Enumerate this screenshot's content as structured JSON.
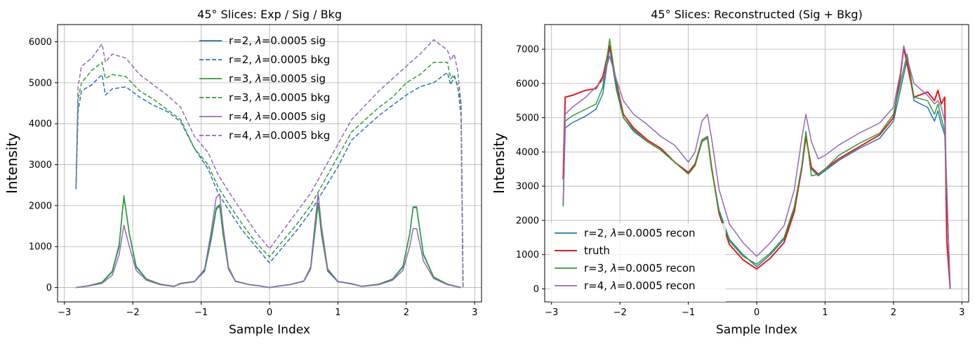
{
  "chart_data": [
    {
      "type": "line",
      "title": "45° Slices: Exp / Sig / Bkg",
      "xlabel": "Sample Index",
      "ylabel": "Intensity",
      "xlim": [
        -3.1,
        3.1
      ],
      "ylim": [
        -350,
        6420
      ],
      "xticks": [
        -3,
        -2,
        -1,
        0,
        1,
        2,
        3
      ],
      "xtick_labels": [
        "−3",
        "−2",
        "−1",
        "0",
        "1",
        "2",
        "3"
      ],
      "yticks": [
        0,
        1000,
        2000,
        3000,
        4000,
        5000,
        6000
      ],
      "ytick_labels": [
        "0",
        "1000",
        "2000",
        "3000",
        "4000",
        "5000",
        "6000"
      ],
      "grid": true,
      "legend_position": "upper-center",
      "series": [
        {
          "name": "r=2, λ=0.0005 sig",
          "label_prefix": "r=2, ",
          "label_value": "=0.0005 sig",
          "color": "#1f77b4",
          "dash": "solid",
          "profile": "sig",
          "peak_scale": 1.0,
          "x": [
            -2.83,
            -2.65,
            -2.45,
            -2.3,
            -2.2,
            -2.13,
            -2.05,
            -1.95,
            -1.8,
            -1.6,
            -1.4,
            -1.3,
            -1.1,
            -0.95,
            -0.85,
            -0.78,
            -0.73,
            -0.68,
            -0.6,
            -0.5,
            -0.3,
            -0.15,
            0,
            0.15,
            0.3,
            0.5,
            0.6,
            0.66,
            0.71,
            0.76,
            0.85,
            1.0,
            1.2,
            1.35,
            1.6,
            1.8,
            1.95,
            2.05,
            2.1,
            2.15,
            2.25,
            2.4,
            2.6,
            2.75,
            2.8
          ],
          "y": [
            0,
            40,
            120,
            380,
            1000,
            2220,
            1300,
            500,
            200,
            80,
            30,
            100,
            140,
            400,
            1200,
            1900,
            2000,
            1300,
            450,
            150,
            70,
            40,
            0,
            40,
            70,
            150,
            450,
            1300,
            2050,
            1300,
            400,
            140,
            90,
            30,
            80,
            200,
            500,
            1300,
            1950,
            1950,
            800,
            250,
            80,
            20,
            0
          ]
        },
        {
          "name": "r=2, λ=0.0005 bkg",
          "label_prefix": "r=2, ",
          "label_value": "=0.0005 bkg",
          "color": "#1f77b4",
          "dash": "dashed",
          "x": [
            -2.83,
            -2.8,
            -2.75,
            -2.6,
            -2.45,
            -2.4,
            -2.3,
            -2.1,
            -1.9,
            -1.7,
            -1.5,
            -1.3,
            -1.1,
            -0.9,
            -0.75,
            -0.6,
            -0.4,
            -0.2,
            0,
            0.2,
            0.4,
            0.6,
            0.8,
            1.0,
            1.2,
            1.4,
            1.6,
            1.8,
            2.0,
            2.2,
            2.4,
            2.6,
            2.65,
            2.7,
            2.75,
            2.8,
            2.83
          ],
          "y": [
            2400,
            4300,
            4800,
            4950,
            5200,
            4700,
            4850,
            4900,
            4650,
            4450,
            4300,
            4050,
            3400,
            2900,
            2300,
            1900,
            1400,
            1000,
            600,
            1000,
            1400,
            1850,
            2400,
            2950,
            3600,
            3900,
            4200,
            4450,
            4700,
            4900,
            5000,
            5250,
            4950,
            5150,
            4950,
            4200,
            0
          ]
        },
        {
          "name": "r=3, λ=0.0005 sig",
          "label_prefix": "r=3, ",
          "label_value": "=0.0005 sig",
          "color": "#2ca02c",
          "dash": "solid",
          "x": [
            -2.83,
            -2.65,
            -2.45,
            -2.3,
            -2.2,
            -2.13,
            -2.05,
            -1.95,
            -1.8,
            -1.6,
            -1.4,
            -1.3,
            -1.1,
            -0.95,
            -0.85,
            -0.78,
            -0.73,
            -0.68,
            -0.6,
            -0.5,
            -0.3,
            -0.15,
            0,
            0.15,
            0.3,
            0.5,
            0.6,
            0.66,
            0.71,
            0.76,
            0.85,
            1.0,
            1.2,
            1.35,
            1.6,
            1.8,
            1.95,
            2.05,
            2.1,
            2.15,
            2.25,
            2.4,
            2.6,
            2.75,
            2.8
          ],
          "y": [
            0,
            45,
            130,
            400,
            1050,
            2240,
            1320,
            520,
            210,
            85,
            30,
            105,
            150,
            420,
            1250,
            1950,
            2020,
            1320,
            460,
            155,
            72,
            42,
            0,
            42,
            72,
            155,
            460,
            1320,
            2060,
            1320,
            420,
            150,
            95,
            30,
            85,
            210,
            520,
            1320,
            1970,
            1970,
            820,
            260,
            85,
            20,
            0
          ]
        },
        {
          "name": "r=3, λ=0.0005 bkg",
          "label_prefix": "r=3, ",
          "label_value": "=0.0005 bkg",
          "color": "#2ca02c",
          "dash": "dashed",
          "x": [
            -2.83,
            -2.8,
            -2.75,
            -2.6,
            -2.45,
            -2.4,
            -2.3,
            -2.1,
            -1.9,
            -1.7,
            -1.5,
            -1.3,
            -1.1,
            -0.9,
            -0.75,
            -0.6,
            -0.4,
            -0.2,
            0,
            0.2,
            0.4,
            0.6,
            0.8,
            1.0,
            1.2,
            1.4,
            1.6,
            1.8,
            2.0,
            2.2,
            2.4,
            2.6,
            2.65,
            2.7,
            2.75,
            2.8,
            2.83
          ],
          "y": [
            2450,
            4600,
            5000,
            5300,
            5500,
            5100,
            5200,
            5150,
            4800,
            4600,
            4350,
            4100,
            3400,
            3000,
            2450,
            2050,
            1550,
            1100,
            750,
            1150,
            1550,
            2000,
            2600,
            3200,
            3800,
            4100,
            4400,
            4650,
            5000,
            5200,
            5500,
            5500,
            5100,
            5200,
            4900,
            4500,
            0
          ]
        },
        {
          "name": "r=4, λ=0.0005 sig",
          "label_prefix": "r=4, ",
          "label_value": "=0.0005 sig",
          "color": "#9467bd",
          "dash": "solid",
          "x": [
            -2.83,
            -2.65,
            -2.45,
            -2.3,
            -2.2,
            -2.13,
            -2.05,
            -1.95,
            -1.8,
            -1.6,
            -1.4,
            -1.3,
            -1.1,
            -0.95,
            -0.85,
            -0.78,
            -0.73,
            -0.68,
            -0.6,
            -0.5,
            -0.3,
            -0.15,
            0,
            0.15,
            0.3,
            0.5,
            0.6,
            0.66,
            0.71,
            0.76,
            0.85,
            1.0,
            1.2,
            1.35,
            1.6,
            1.8,
            1.95,
            2.05,
            2.1,
            2.15,
            2.25,
            2.4,
            2.6,
            2.75,
            2.8
          ],
          "y": [
            0,
            35,
            100,
            300,
            800,
            1520,
            1000,
            420,
            180,
            70,
            25,
            90,
            140,
            450,
            1400,
            2200,
            2280,
            1500,
            500,
            160,
            75,
            45,
            0,
            45,
            75,
            160,
            500,
            1500,
            2300,
            1500,
            460,
            150,
            85,
            25,
            70,
            180,
            420,
            1000,
            1440,
            1440,
            650,
            220,
            70,
            15,
            0
          ]
        },
        {
          "name": "r=4, λ=0.0005 bkg",
          "label_prefix": "r=4, ",
          "label_value": "=0.0005 bkg",
          "color": "#9467bd",
          "dash": "dashed",
          "x": [
            -2.83,
            -2.8,
            -2.75,
            -2.6,
            -2.45,
            -2.4,
            -2.3,
            -2.1,
            -1.9,
            -1.7,
            -1.5,
            -1.3,
            -1.1,
            -0.9,
            -0.75,
            -0.6,
            -0.4,
            -0.2,
            0,
            0.2,
            0.4,
            0.6,
            0.8,
            1.0,
            1.2,
            1.4,
            1.6,
            1.8,
            2.0,
            2.2,
            2.4,
            2.6,
            2.65,
            2.7,
            2.75,
            2.8,
            2.83
          ],
          "y": [
            2500,
            4900,
            5400,
            5600,
            5950,
            5500,
            5700,
            5600,
            5200,
            4950,
            4700,
            4400,
            3700,
            3300,
            2750,
            2350,
            1850,
            1350,
            950,
            1400,
            1850,
            2300,
            2900,
            3500,
            4100,
            4450,
            4800,
            5100,
            5400,
            5700,
            6050,
            5800,
            5550,
            5700,
            5300,
            4500,
            0
          ]
        }
      ]
    },
    {
      "type": "line",
      "title": "45° Slices: Reconstructed (Sig + Bkg)",
      "xlabel": "Sample Index",
      "ylabel": "Intensity",
      "xlim": [
        -3.1,
        3.1
      ],
      "ylim": [
        -380,
        7720
      ],
      "xticks": [
        -3,
        -2,
        -1,
        0,
        1,
        2,
        3
      ],
      "xtick_labels": [
        "−3",
        "−2",
        "−1",
        "0",
        "1",
        "2",
        "3"
      ],
      "yticks": [
        0,
        1000,
        2000,
        3000,
        4000,
        5000,
        6000,
        7000
      ],
      "ytick_labels": [
        "0",
        "1000",
        "2000",
        "3000",
        "4000",
        "5000",
        "6000",
        "7000"
      ],
      "grid": true,
      "legend_position": "lower-left",
      "series": [
        {
          "name": "r=2, λ=0.0005 recon",
          "label_prefix": "r=2, ",
          "label_value": "=0.0005 recon",
          "color": "#1f77b4",
          "dash": "solid",
          "x": [
            -2.83,
            -2.8,
            -2.7,
            -2.5,
            -2.35,
            -2.25,
            -2.15,
            -2.05,
            -1.95,
            -1.8,
            -1.6,
            -1.4,
            -1.2,
            -1.0,
            -0.9,
            -0.8,
            -0.72,
            -0.66,
            -0.55,
            -0.4,
            -0.2,
            0,
            0.2,
            0.4,
            0.55,
            0.66,
            0.72,
            0.8,
            0.9,
            1.0,
            1.2,
            1.5,
            1.8,
            2.0,
            2.1,
            2.2,
            2.3,
            2.5,
            2.6,
            2.65,
            2.7,
            2.75,
            2.8,
            2.83
          ],
          "y": [
            2450,
            4700,
            4850,
            5050,
            5250,
            5700,
            7050,
            5800,
            5000,
            4600,
            4300,
            4050,
            3700,
            3400,
            3600,
            4300,
            4400,
            3500,
            2300,
            1450,
            1000,
            650,
            1000,
            1450,
            2300,
            3500,
            4500,
            3500,
            3300,
            3450,
            3750,
            4100,
            4400,
            4900,
            5800,
            6700,
            5500,
            5300,
            4900,
            5200,
            4800,
            4500,
            1600,
            0
          ]
        },
        {
          "name": "truth",
          "label_prefix": "truth",
          "label_value": "",
          "color": "#e8191c",
          "dash": "solid",
          "width": 2,
          "x": [
            -2.83,
            -2.8,
            -2.7,
            -2.5,
            -2.35,
            -2.25,
            -2.15,
            -2.05,
            -1.95,
            -1.8,
            -1.6,
            -1.4,
            -1.2,
            -1.0,
            -0.9,
            -0.8,
            -0.72,
            -0.66,
            -0.55,
            -0.4,
            -0.2,
            0,
            0.2,
            0.4,
            0.55,
            0.66,
            0.72,
            0.8,
            0.9,
            1.0,
            1.2,
            1.5,
            1.8,
            2.0,
            2.1,
            2.15,
            2.3,
            2.5,
            2.6,
            2.65,
            2.7,
            2.75,
            2.78,
            2.83
          ],
          "y": [
            3200,
            5600,
            5650,
            5800,
            5850,
            6200,
            7100,
            6000,
            5100,
            4700,
            4350,
            4100,
            3700,
            3400,
            3650,
            4350,
            4450,
            3550,
            2200,
            1300,
            850,
            580,
            900,
            1350,
            2250,
            3550,
            4450,
            3550,
            3350,
            3500,
            3800,
            4150,
            4500,
            5000,
            6200,
            7050,
            5600,
            5750,
            5500,
            5800,
            5400,
            5600,
            1400,
            0
          ]
        },
        {
          "name": "r=3, λ=0.0005 recon",
          "label_prefix": "r=3, ",
          "label_value": "=0.0005 recon",
          "color": "#2ca02c",
          "dash": "solid",
          "x": [
            -2.83,
            -2.8,
            -2.7,
            -2.5,
            -2.35,
            -2.25,
            -2.15,
            -2.05,
            -1.95,
            -1.8,
            -1.6,
            -1.4,
            -1.2,
            -1.0,
            -0.9,
            -0.8,
            -0.72,
            -0.66,
            -0.55,
            -0.4,
            -0.2,
            0,
            0.2,
            0.4,
            0.55,
            0.66,
            0.72,
            0.8,
            0.9,
            1.0,
            1.2,
            1.5,
            1.8,
            2.0,
            2.1,
            2.2,
            2.3,
            2.5,
            2.6,
            2.65,
            2.7,
            2.75,
            2.8,
            2.83
          ],
          "y": [
            2400,
            4900,
            5050,
            5250,
            5400,
            5900,
            7300,
            5900,
            5000,
            4650,
            4300,
            4050,
            3700,
            3350,
            3600,
            4350,
            4450,
            3500,
            2250,
            1400,
            950,
            720,
            1050,
            1500,
            2400,
            3600,
            4600,
            3300,
            3350,
            3500,
            3900,
            4250,
            4550,
            5100,
            6000,
            6850,
            5600,
            5500,
            5100,
            5400,
            5000,
            4600,
            1600,
            0
          ]
        },
        {
          "name": "r=4, λ=0.0005 recon",
          "label_prefix": "r=4, ",
          "label_value": "=0.0005 recon",
          "color": "#9467bd",
          "dash": "solid",
          "x": [
            -2.83,
            -2.8,
            -2.7,
            -2.5,
            -2.35,
            -2.25,
            -2.15,
            -2.05,
            -1.95,
            -1.8,
            -1.6,
            -1.4,
            -1.2,
            -1.0,
            -0.9,
            -0.8,
            -0.72,
            -0.66,
            -0.55,
            -0.4,
            -0.2,
            0,
            0.2,
            0.4,
            0.55,
            0.66,
            0.72,
            0.8,
            0.9,
            1.0,
            1.2,
            1.5,
            1.8,
            2.0,
            2.1,
            2.15,
            2.3,
            2.5,
            2.6,
            2.65,
            2.7,
            2.75,
            2.8,
            2.83
          ],
          "y": [
            2500,
            5100,
            5300,
            5600,
            5900,
            6100,
            6800,
            6100,
            5500,
            5100,
            4800,
            4450,
            4200,
            3700,
            4000,
            4900,
            5100,
            4400,
            2900,
            1900,
            1350,
            950,
            1350,
            1850,
            2900,
            4400,
            5100,
            4300,
            3800,
            3900,
            4200,
            4550,
            4850,
            5300,
            6300,
            7100,
            6000,
            5650,
            5400,
            5500,
            5300,
            4900,
            1700,
            0
          ]
        }
      ]
    }
  ]
}
